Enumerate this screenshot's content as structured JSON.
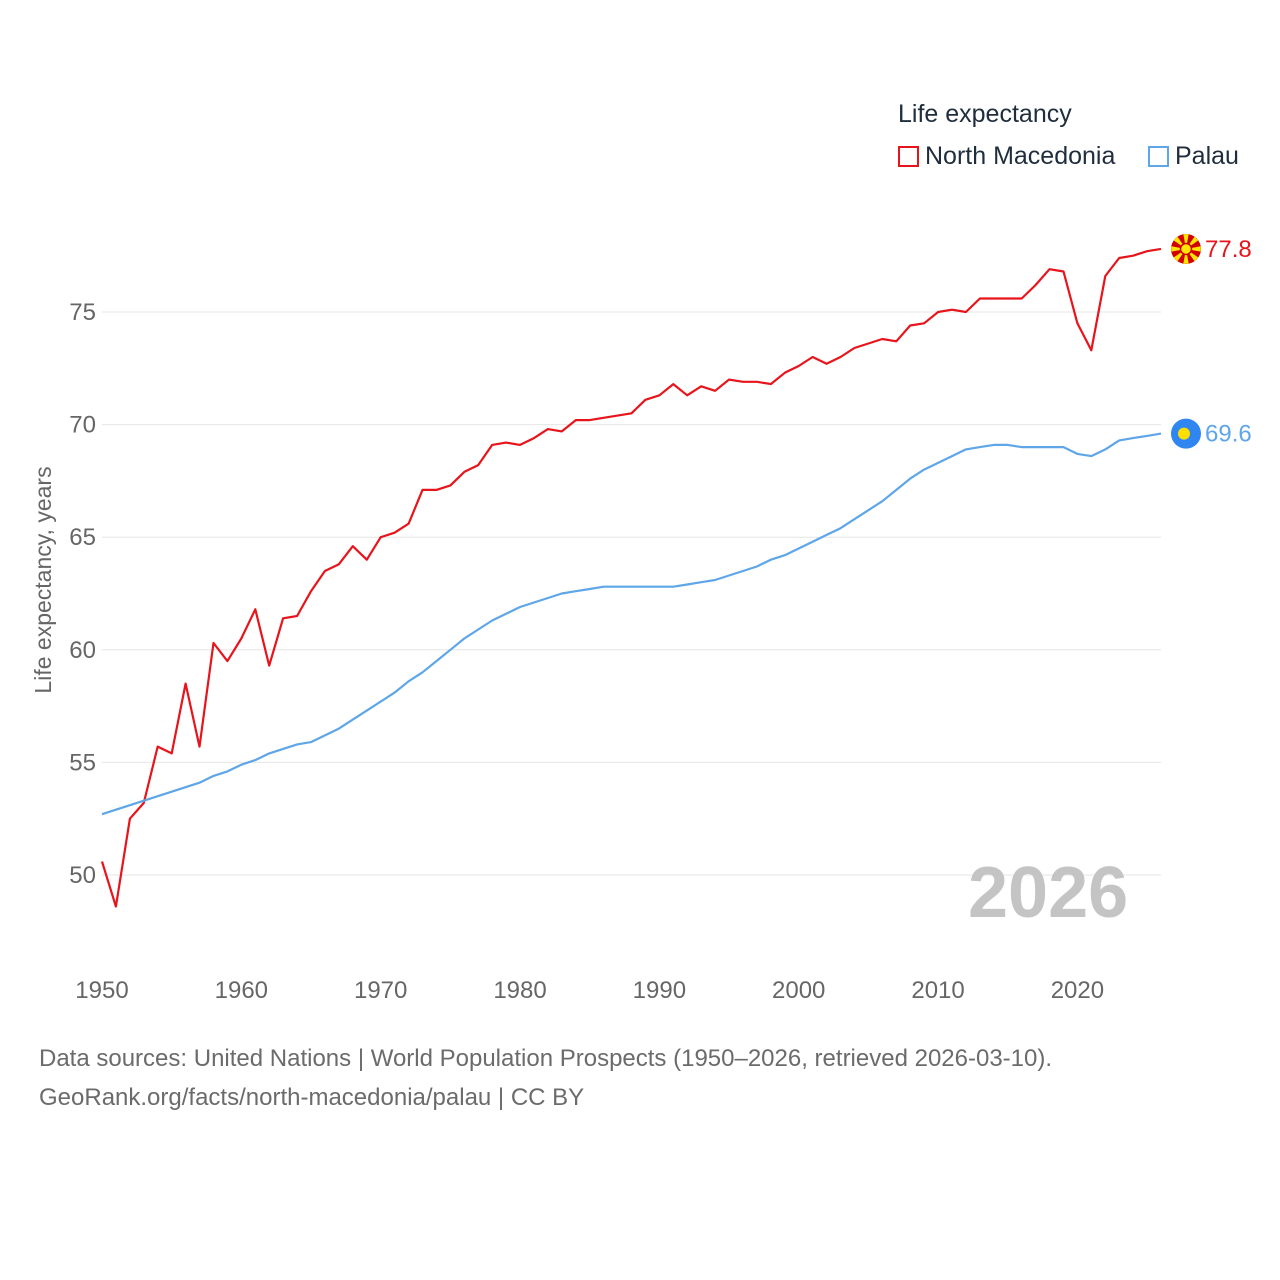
{
  "legend": {
    "title": "Life expectancy",
    "items": [
      {
        "name": "North Macedonia",
        "color": "#e8141b"
      },
      {
        "name": "Palau",
        "color": "#5ea6e8"
      }
    ]
  },
  "year_stamp": "2026",
  "footer": {
    "line1": "Data sources: United Nations | World Population Prospects (1950–2026, retrieved 2026-03-10).",
    "line2": "GeoRank.org/facts/north-macedonia/palau | CC BY"
  },
  "chart_data": {
    "type": "line",
    "title": "",
    "xlabel": "",
    "ylabel": "Life expectancy, years",
    "xlim": [
      1950,
      2026
    ],
    "ylim": [
      47,
      80
    ],
    "x_ticks": [
      1950,
      1960,
      1970,
      1980,
      1990,
      2000,
      2010,
      2020
    ],
    "y_ticks": [
      50,
      55,
      60,
      65,
      70,
      75
    ],
    "grid": "horizontal",
    "series": [
      {
        "name": "North Macedonia",
        "color": "#e8141b",
        "end_label": "77.8",
        "x": [
          1950,
          1951,
          1952,
          1953,
          1954,
          1955,
          1956,
          1957,
          1958,
          1959,
          1960,
          1961,
          1962,
          1963,
          1964,
          1965,
          1966,
          1967,
          1968,
          1969,
          1970,
          1971,
          1972,
          1973,
          1974,
          1975,
          1976,
          1977,
          1978,
          1979,
          1980,
          1981,
          1982,
          1983,
          1984,
          1985,
          1986,
          1987,
          1988,
          1989,
          1990,
          1991,
          1992,
          1993,
          1994,
          1995,
          1996,
          1997,
          1998,
          1999,
          2000,
          2001,
          2002,
          2003,
          2004,
          2005,
          2006,
          2007,
          2008,
          2009,
          2010,
          2011,
          2012,
          2013,
          2014,
          2015,
          2016,
          2017,
          2018,
          2019,
          2020,
          2021,
          2022,
          2023,
          2024,
          2025,
          2026
        ],
        "y": [
          50.6,
          48.6,
          52.5,
          53.2,
          55.7,
          55.4,
          58.5,
          55.7,
          60.3,
          59.5,
          60.5,
          61.8,
          59.3,
          61.4,
          61.5,
          62.6,
          63.5,
          63.8,
          64.6,
          64.0,
          65.0,
          65.2,
          65.6,
          67.1,
          67.1,
          67.3,
          67.9,
          68.2,
          69.1,
          69.2,
          69.1,
          69.4,
          69.8,
          69.7,
          70.2,
          70.2,
          70.3,
          70.4,
          70.5,
          71.1,
          71.3,
          71.8,
          71.3,
          71.7,
          71.5,
          72.0,
          71.9,
          71.9,
          71.8,
          72.3,
          72.6,
          73.0,
          72.7,
          73.0,
          73.4,
          73.6,
          73.8,
          73.7,
          74.4,
          74.5,
          75.0,
          75.1,
          75.0,
          75.6,
          75.6,
          75.6,
          75.6,
          76.2,
          76.9,
          76.8,
          74.5,
          73.3,
          76.6,
          77.4,
          77.5,
          77.7,
          77.8
        ]
      },
      {
        "name": "Palau",
        "color": "#5ea6e8",
        "end_label": "69.6",
        "x": [
          1950,
          1951,
          1952,
          1953,
          1954,
          1955,
          1956,
          1957,
          1958,
          1959,
          1960,
          1961,
          1962,
          1963,
          1964,
          1965,
          1966,
          1967,
          1968,
          1969,
          1970,
          1971,
          1972,
          1973,
          1974,
          1975,
          1976,
          1977,
          1978,
          1979,
          1980,
          1981,
          1982,
          1983,
          1984,
          1985,
          1986,
          1987,
          1988,
          1989,
          1990,
          1991,
          1992,
          1993,
          1994,
          1995,
          1996,
          1997,
          1998,
          1999,
          2000,
          2001,
          2002,
          2003,
          2004,
          2005,
          2006,
          2007,
          2008,
          2009,
          2010,
          2011,
          2012,
          2013,
          2014,
          2015,
          2016,
          2017,
          2018,
          2019,
          2020,
          2021,
          2022,
          2023,
          2024,
          2025,
          2026
        ],
        "y": [
          52.7,
          52.9,
          53.1,
          53.3,
          53.5,
          53.7,
          53.9,
          54.1,
          54.4,
          54.6,
          54.9,
          55.1,
          55.4,
          55.6,
          55.8,
          55.9,
          56.2,
          56.5,
          56.9,
          57.3,
          57.7,
          58.1,
          58.6,
          59.0,
          59.5,
          60.0,
          60.5,
          60.9,
          61.3,
          61.6,
          61.9,
          62.1,
          62.3,
          62.5,
          62.6,
          62.7,
          62.8,
          62.8,
          62.8,
          62.8,
          62.8,
          62.8,
          62.9,
          63.0,
          63.1,
          63.3,
          63.5,
          63.7,
          64.0,
          64.2,
          64.5,
          64.8,
          65.1,
          65.4,
          65.8,
          66.2,
          66.6,
          67.1,
          67.6,
          68.0,
          68.3,
          68.6,
          68.9,
          69.0,
          69.1,
          69.1,
          69.0,
          69.0,
          69.0,
          69.0,
          68.7,
          68.6,
          68.9,
          69.3,
          69.4,
          69.5,
          69.6
        ]
      }
    ]
  }
}
